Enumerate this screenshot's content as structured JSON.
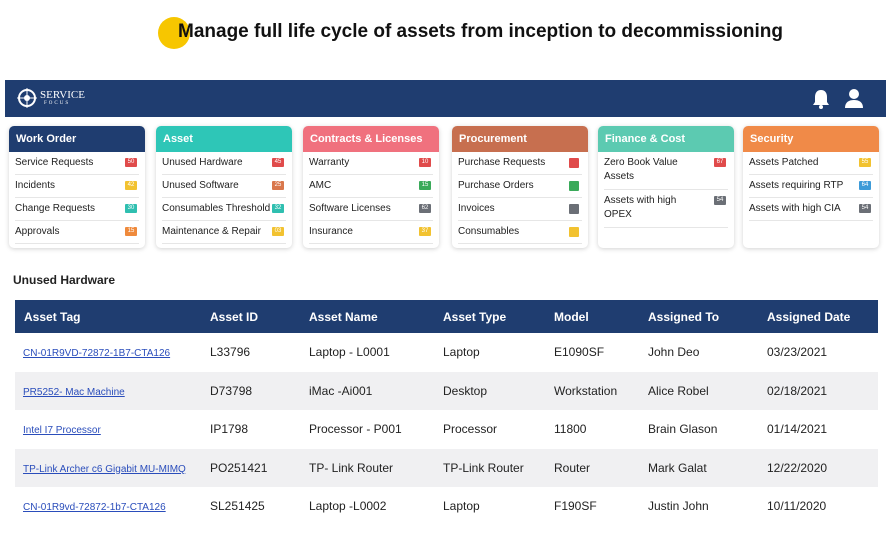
{
  "caption": "Manage full life cycle of assets from inception to decommissioning",
  "nav": {
    "logo": "SERVICE",
    "logo_sub": "FOCUS"
  },
  "cards": [
    {
      "title": "Work Order",
      "color": "#1f3d70",
      "items": [
        {
          "label": "Service Requests",
          "badge": "50",
          "color": "#e04b4b"
        },
        {
          "label": "Incidents",
          "badge": "42",
          "color": "#f2c230"
        },
        {
          "label": "Change Requests",
          "badge": "30",
          "color": "#2fbfb0"
        },
        {
          "label": "Approvals",
          "badge": "15",
          "color": "#ef8a3c"
        }
      ]
    },
    {
      "title": "Asset",
      "color": "#2ec6b7",
      "items": [
        {
          "label": "Unused Hardware",
          "badge": "45",
          "color": "#e04b4b"
        },
        {
          "label": "Unused Software",
          "badge": "25",
          "color": "#d9774c"
        },
        {
          "label": "Consumables Threshold",
          "badge": "32",
          "color": "#2fbfb0"
        },
        {
          "label": "Maintenance & Repair",
          "badge": "03",
          "color": "#f2c230"
        }
      ]
    },
    {
      "title": "Contracts & Licenses",
      "color": "#f0717e",
      "items": [
        {
          "label": "Warranty",
          "badge": "10",
          "color": "#e04b4b"
        },
        {
          "label": "AMC",
          "badge": "15",
          "color": "#3aaa5a"
        },
        {
          "label": "Software Licenses",
          "badge": "62",
          "color": "#6b6f76"
        },
        {
          "label": "Insurance",
          "badge": "37",
          "color": "#f2c230"
        }
      ]
    },
    {
      "title": "Procurement",
      "color": "#c76f4f",
      "items": [
        {
          "label": "Purchase Requests",
          "color": "#e04b4b"
        },
        {
          "label": "Purchase Orders",
          "color": "#3aaa5a"
        },
        {
          "label": "Invoices",
          "color": "#6b6f76"
        },
        {
          "label": "Consumables",
          "color": "#f2c230"
        }
      ]
    },
    {
      "title": "Finance & Cost",
      "color": "#5ccab1",
      "items": [
        {
          "label": "Zero Book Value Assets",
          "badge": "67",
          "color": "#e04b4b"
        },
        {
          "label": "Assets with high OPEX",
          "badge": "54",
          "color": "#6b6f76"
        }
      ]
    },
    {
      "title": "Security",
      "color": "#f08a48",
      "items": [
        {
          "label": "Assets Patched",
          "badge": "55",
          "color": "#f2c230"
        },
        {
          "label": "Assets requiring RTP",
          "badge": "64",
          "color": "#3d9bd8"
        },
        {
          "label": "Assets with high CIA",
          "badge": "54",
          "color": "#6b6f76"
        }
      ]
    }
  ],
  "table": {
    "title": "Unused Hardware",
    "columns": [
      "Asset Tag",
      "Asset ID",
      "Asset Name",
      "Asset Type",
      "Model",
      "Assigned To",
      "Assigned Date"
    ],
    "rows": [
      [
        "CN-01R9VD-72872-1B7-CTA126",
        "L33796",
        "Laptop - L0001",
        "Laptop",
        "E1090SF",
        "John Deo",
        "03/23/2021"
      ],
      [
        "PR5252- Mac Machine",
        "D73798",
        "iMac -Ai001",
        "Desktop",
        "Workstation",
        "Alice Robel",
        "02/18/2021"
      ],
      [
        "Intel I7 Processor",
        "IP1798",
        "Processor - P001",
        "Processor",
        "11800",
        "Brain Glason",
        "01/14/2021"
      ],
      [
        "TP-Link Archer c6 Gigabit MU-MIMQ",
        "PO251421",
        "TP- Link Router",
        "TP-Link Router",
        "Router",
        "Mark Galat",
        "12/22/2020"
      ],
      [
        "CN-01R9vd-72872-1b7-CTA126",
        "SL251425",
        "Laptop -L0002",
        "Laptop",
        "F190SF",
        "Justin John",
        "10/11/2020"
      ]
    ]
  }
}
